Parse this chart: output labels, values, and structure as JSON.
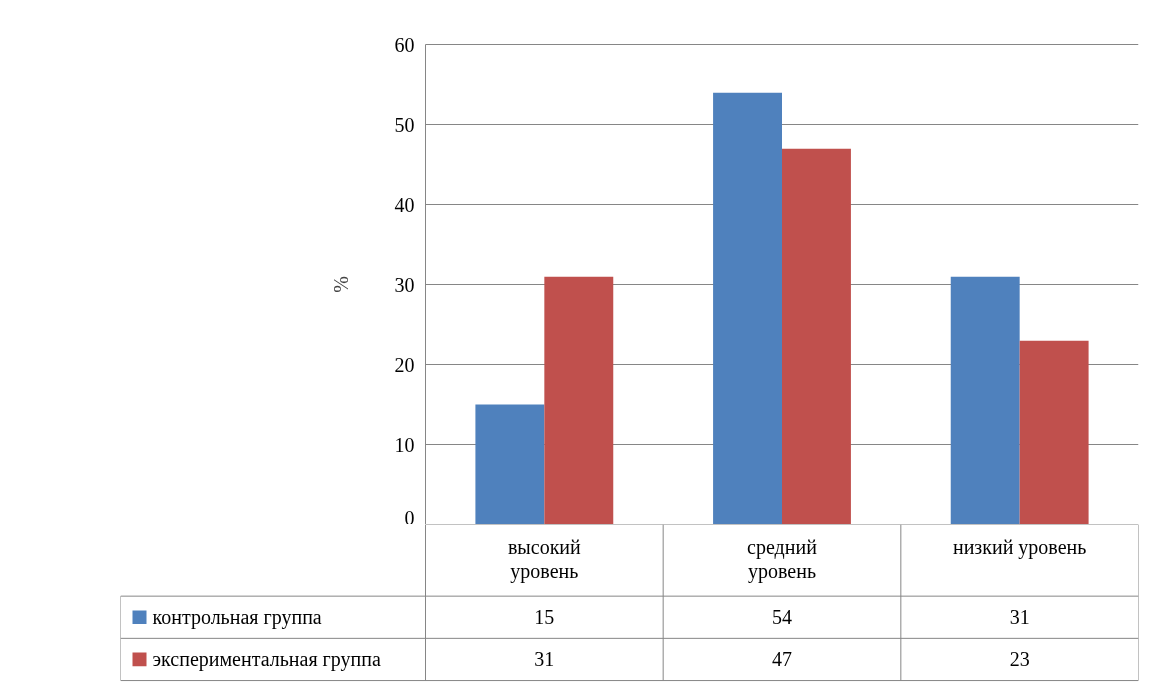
{
  "chart_data": {
    "type": "bar",
    "ylabel": "%",
    "categories": [
      "высокий уровень",
      "средний уровень",
      "низкий уровень"
    ],
    "series": [
      {
        "name": "контрольная группа",
        "color": "#4f81bd",
        "values": [
          15,
          54,
          31
        ]
      },
      {
        "name": "экспериментальная группа",
        "color": "#c0504d",
        "values": [
          31,
          47,
          23
        ]
      }
    ],
    "ylim": [
      0,
      60
    ],
    "yticks": [
      0,
      10,
      20,
      30,
      40,
      50,
      60
    ],
    "grid": "y",
    "legend": "bottom",
    "data_labels": true
  }
}
